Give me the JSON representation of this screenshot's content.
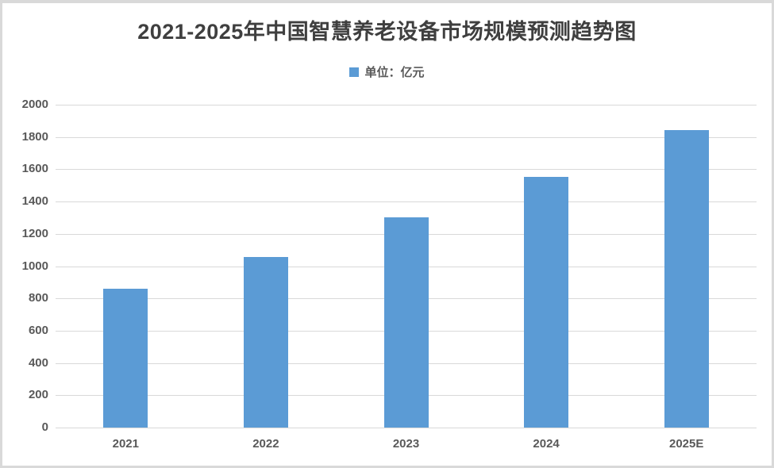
{
  "chart_data": {
    "type": "bar",
    "title": "2021-2025年中国智慧养老设备市场规模预测趋势图",
    "unit_label": "单位：亿元",
    "categories": [
      "2021",
      "2022",
      "2023",
      "2024",
      "2025E"
    ],
    "values": [
      860,
      1055,
      1300,
      1555,
      1845
    ],
    "xlabel": "",
    "ylabel": "",
    "ylim": [
      0,
      2000
    ],
    "ytick_step": 200,
    "ytick_labels": [
      "0",
      "200",
      "400",
      "600",
      "800",
      "1000",
      "1200",
      "1400",
      "1600",
      "1800",
      "2000"
    ],
    "grid": true,
    "legend_position": "top-center",
    "bar_color": "#5b9bd5"
  },
  "colors": {
    "bar": "#5b9bd5",
    "gridline": "#d9d9d9",
    "axis_text": "#595959",
    "title_text": "#3f3f3f",
    "figure_border": "#d9d9d9",
    "background": "#ffffff"
  }
}
